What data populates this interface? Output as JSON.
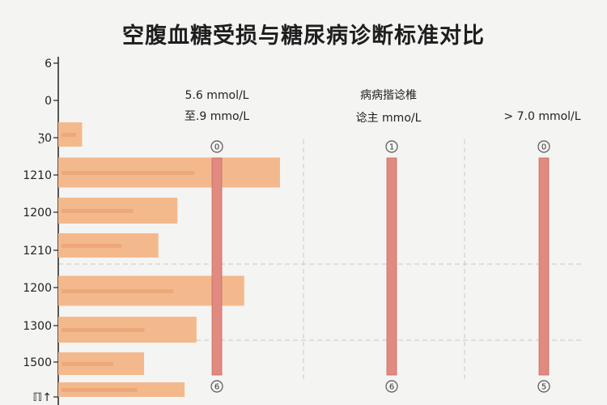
{
  "title": "空腹血糖受损与糖尿病诊断标准对比",
  "colors": {
    "bar_fill": "#f3b98d",
    "bar_inner": "#e89b6b",
    "column_fill": "#e08a80",
    "column_edge": "#c86b62",
    "grid": "#c9c9c9",
    "axis": "#222222"
  },
  "chart_data": {
    "type": "bar",
    "orientation": "horizontal",
    "y_tick_labels": [
      "6",
      "0",
      "ℨ0",
      "1210",
      "1200",
      "1210",
      "1200",
      "1300",
      "1500",
      "ℿ↑"
    ],
    "bars": [
      {
        "category": "ℨ0",
        "value": 1.0
      },
      {
        "category": "1210",
        "value": 9.3
      },
      {
        "category": "1200",
        "value": 5.0
      },
      {
        "category": "1210",
        "value": 4.2
      },
      {
        "category": "1200",
        "value": 7.8
      },
      {
        "category": "1300",
        "value": 5.8
      },
      {
        "category": "1500",
        "value": 3.6
      },
      {
        "category": "ℿ↑",
        "value": 5.3
      }
    ],
    "xlim": [
      0,
      22
    ],
    "grid": true,
    "columns": [
      {
        "lines": [
          "5.6 mmol/L",
          "至.9 mmo/L"
        ],
        "top_marker": "0",
        "bottom_marker": "6"
      },
      {
        "lines": [
          "病病揩谂椎",
          "谂主 mmo/L"
        ],
        "top_marker": "1",
        "bottom_marker": "6"
      },
      {
        "lines": [
          "> 7.0 mmol/L"
        ],
        "top_marker": "0",
        "bottom_marker": "5"
      }
    ]
  }
}
